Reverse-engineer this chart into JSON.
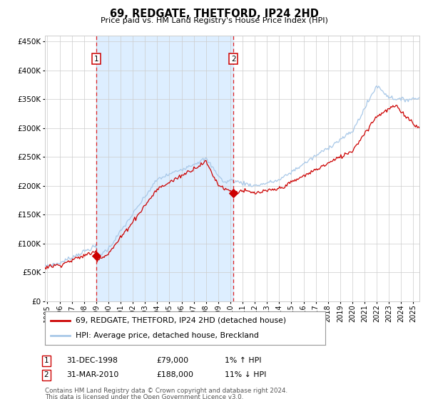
{
  "title": "69, REDGATE, THETFORD, IP24 2HD",
  "subtitle": "Price paid vs. HM Land Registry's House Price Index (HPI)",
  "legend_line1": "69, REDGATE, THETFORD, IP24 2HD (detached house)",
  "legend_line2": "HPI: Average price, detached house, Breckland",
  "annotation1_date": "31-DEC-1998",
  "annotation1_price": "£79,000",
  "annotation1_hpi": "1% ↑ HPI",
  "annotation1_year": 1999.0,
  "annotation1_value": 79000,
  "annotation2_date": "31-MAR-2010",
  "annotation2_price": "£188,000",
  "annotation2_hpi": "11% ↓ HPI",
  "annotation2_year": 2010.25,
  "annotation2_value": 188000,
  "hpi_color": "#a8c8e8",
  "price_color": "#cc0000",
  "marker_color": "#cc0000",
  "dashed_color": "#dd2222",
  "shade_color": "#ddeeff",
  "grid_color": "#cccccc",
  "background_color": "#ffffff",
  "ylim": [
    0,
    460000
  ],
  "yticks": [
    0,
    50000,
    100000,
    150000,
    200000,
    250000,
    300000,
    350000,
    400000,
    450000
  ],
  "xlim_start": 1994.8,
  "xlim_end": 2025.5,
  "footnote_line1": "Contains HM Land Registry data © Crown copyright and database right 2024.",
  "footnote_line2": "This data is licensed under the Open Government Licence v3.0."
}
